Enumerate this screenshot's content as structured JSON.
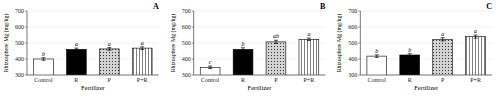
{
  "chart_data": [
    {
      "type": "bar",
      "title": "A",
      "x_label": "Fertilizer",
      "y_label": "Rhizosphere Mg (mg/kg)",
      "categories": [
        "Control",
        "R",
        "P",
        "P+R"
      ],
      "values": [
        400,
        460,
        463,
        468
      ],
      "errors": [
        8,
        8,
        8,
        8
      ],
      "annotations": [
        "b",
        "a",
        "a",
        "a"
      ],
      "colors": [
        "white",
        "black",
        "lightgray",
        "white"
      ],
      "ylim": [
        300,
        700
      ],
      "yticks": [
        300,
        400,
        500,
        600,
        700
      ]
    },
    {
      "type": "bar",
      "title": "B",
      "x_label": "Fertilizer",
      "y_label": "Rhizosphere Mg (mg/kg)",
      "categories": [
        "Control",
        "R",
        "P",
        "P+R"
      ],
      "values": [
        348,
        460,
        507,
        523
      ],
      "errors": [
        8,
        10,
        10,
        8
      ],
      "annotations": [
        "c",
        "b",
        "ab",
        "a"
      ],
      "colors": [
        "white",
        "black",
        "lightgray",
        "white"
      ],
      "ylim": [
        300,
        700
      ],
      "yticks": [
        300,
        400,
        500,
        600,
        700
      ]
    },
    {
      "type": "bar",
      "title": "C",
      "x_label": "Fertilizer",
      "y_label": "Rhizosphere Mg (mg/kg)",
      "categories": [
        "Control",
        "R",
        "P",
        "P+R"
      ],
      "values": [
        418,
        425,
        523,
        540
      ],
      "errors": [
        8,
        8,
        10,
        10
      ],
      "annotations": [
        "b",
        "b",
        "a",
        "a"
      ],
      "colors": [
        "white",
        "black",
        "lightgray",
        "white"
      ],
      "ylim": [
        300,
        700
      ],
      "yticks": [
        300,
        400,
        500,
        600,
        700
      ]
    }
  ]
}
